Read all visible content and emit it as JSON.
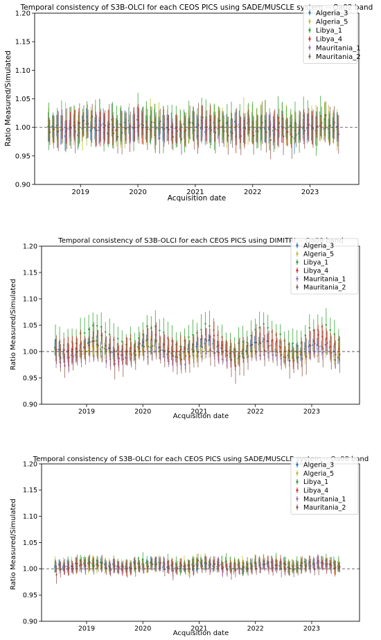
{
  "chart_data": [
    {
      "type": "scatter",
      "title": "Temporal consistency of S3B-OLCI for each CEOS PICS using SADE/MUSCLE system -- Oa02 band",
      "xlabel": "Acquisition date",
      "ylabel": "Ratio Measured/Simulated",
      "ylim": [
        0.9,
        1.2
      ],
      "yticks": [
        "0.90",
        "0.95",
        "1.00",
        "1.05",
        "1.10",
        "1.15",
        "1.20"
      ],
      "xlim": [
        2018.2,
        2023.85
      ],
      "xticks": [
        "2019",
        "2020",
        "2021",
        "2022",
        "2023"
      ],
      "reference_line": 1.0,
      "legend_position": "top-right",
      "error_bars": true,
      "series": [
        {
          "name": "Algeria_3",
          "color": "#1f77b4",
          "mean": 1.0,
          "amplitude": 0.002,
          "noise": 0.008,
          "err": 0.022
        },
        {
          "name": "Algeria_5",
          "color": "#bcbd22",
          "mean": 1.002,
          "amplitude": 0.003,
          "noise": 0.009,
          "err": 0.028
        },
        {
          "name": "Libya_1",
          "color": "#2ca02c",
          "mean": 1.003,
          "amplitude": 0.003,
          "noise": 0.01,
          "err": 0.032
        },
        {
          "name": "Libya_4",
          "color": "#d62728",
          "mean": 0.998,
          "amplitude": 0.002,
          "noise": 0.008,
          "err": 0.024
        },
        {
          "name": "Mauritania_1",
          "color": "#9467bd",
          "mean": 0.999,
          "amplitude": 0.002,
          "noise": 0.008,
          "err": 0.02
        },
        {
          "name": "Mauritania_2",
          "color": "#8c564b",
          "mean": 0.998,
          "amplitude": 0.002,
          "noise": 0.01,
          "err": 0.03
        }
      ]
    },
    {
      "type": "scatter",
      "title": "Temporal consistency of S3B-OLCI for each CEOS PICS using DIMITRI -- Oa08 band",
      "xlabel": "Acquisition date",
      "ylabel": "Ratio Measured/Simulated",
      "ylim": [
        0.9,
        1.2
      ],
      "yticks": [
        "0.90",
        "0.95",
        "1.00",
        "1.05",
        "1.10",
        "1.15",
        "1.20"
      ],
      "xlim": [
        2018.2,
        2023.85
      ],
      "xticks": [
        "2019",
        "2020",
        "2021",
        "2022",
        "2023"
      ],
      "reference_line": 1.0,
      "legend_position": "top-right",
      "error_bars": true,
      "series": [
        {
          "name": "Algeria_3",
          "color": "#1f77b4",
          "mean": 1.005,
          "amplitude": 0.01,
          "noise": 0.006,
          "err": 0.012
        },
        {
          "name": "Algeria_5",
          "color": "#bcbd22",
          "mean": 1.0,
          "amplitude": 0.008,
          "noise": 0.006,
          "err": 0.014
        },
        {
          "name": "Libya_1",
          "color": "#2ca02c",
          "mean": 1.03,
          "amplitude": 0.018,
          "noise": 0.006,
          "err": 0.025
        },
        {
          "name": "Libya_4",
          "color": "#d62728",
          "mean": 1.01,
          "amplitude": 0.012,
          "noise": 0.006,
          "err": 0.022
        },
        {
          "name": "Mauritania_1",
          "color": "#9467bd",
          "mean": 0.99,
          "amplitude": 0.008,
          "noise": 0.006,
          "err": 0.012
        },
        {
          "name": "Mauritania_2",
          "color": "#8c564b",
          "mean": 0.998,
          "amplitude": 0.012,
          "noise": 0.008,
          "err": 0.028
        }
      ]
    },
    {
      "type": "scatter",
      "title": "Temporal consistency of S3B-OLCI for each CEOS PICS using SADE/MUSCLE system -- Oa08 band",
      "xlabel": "Acquisition date",
      "ylabel": "Ratio Measured/Simulated",
      "ylim": [
        0.9,
        1.2
      ],
      "yticks": [
        "0.90",
        "0.95",
        "1.00",
        "1.05",
        "1.10",
        "1.15",
        "1.20"
      ],
      "xlim": [
        2018.2,
        2023.85
      ],
      "xticks": [
        "2019",
        "2020",
        "2021",
        "2022",
        "2023"
      ],
      "reference_line": 1.0,
      "legend_position": "top-right",
      "error_bars": true,
      "series": [
        {
          "name": "Algeria_3",
          "color": "#1f77b4",
          "mean": 1.008,
          "amplitude": 0.003,
          "noise": 0.004,
          "err": 0.01
        },
        {
          "name": "Algeria_5",
          "color": "#bcbd22",
          "mean": 1.008,
          "amplitude": 0.003,
          "noise": 0.004,
          "err": 0.012
        },
        {
          "name": "Libya_1",
          "color": "#2ca02c",
          "mean": 1.01,
          "amplitude": 0.004,
          "noise": 0.004,
          "err": 0.012
        },
        {
          "name": "Libya_4",
          "color": "#d62728",
          "mean": 1.006,
          "amplitude": 0.003,
          "noise": 0.004,
          "err": 0.012
        },
        {
          "name": "Mauritania_1",
          "color": "#9467bd",
          "mean": 1.004,
          "amplitude": 0.003,
          "noise": 0.004,
          "err": 0.01
        },
        {
          "name": "Mauritania_2",
          "color": "#8c564b",
          "mean": 1.004,
          "amplitude": 0.003,
          "noise": 0.005,
          "err": 0.014
        }
      ]
    }
  ]
}
